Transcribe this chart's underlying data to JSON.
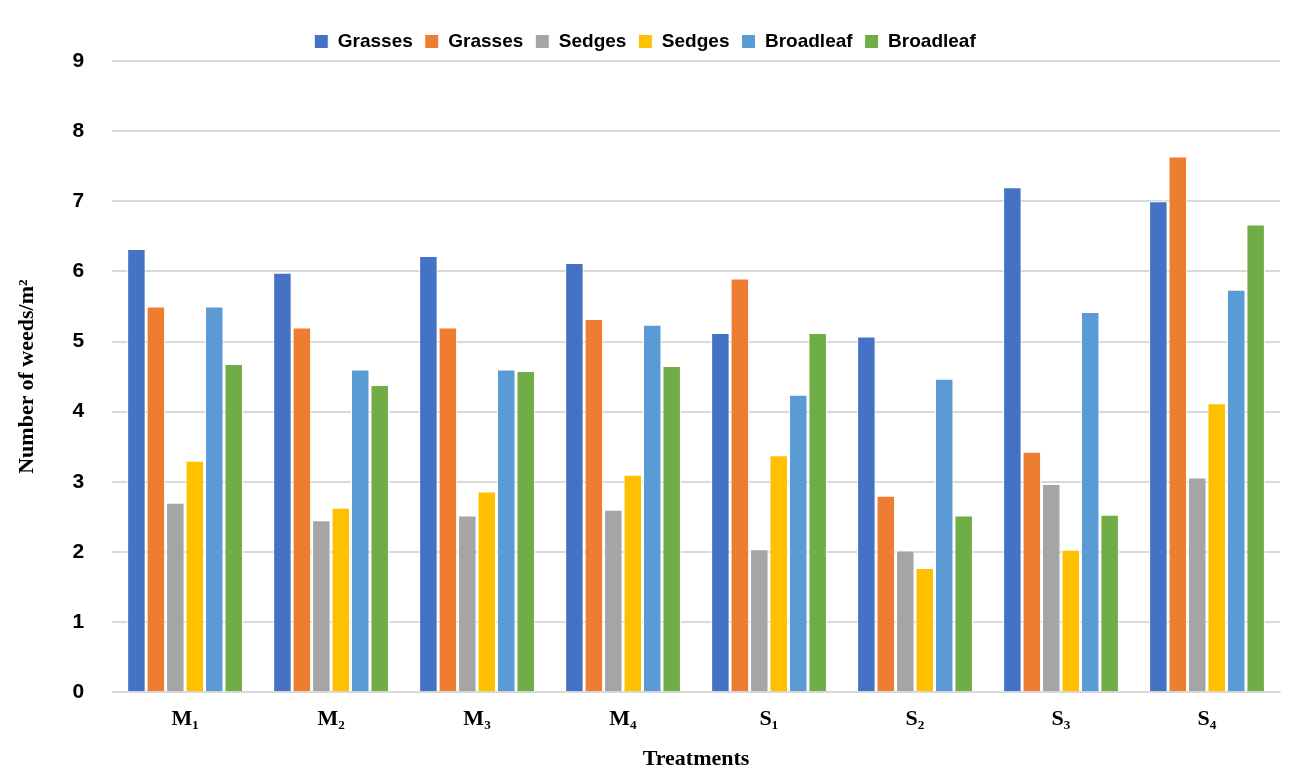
{
  "chart_data": {
    "type": "bar",
    "xlabel": "Treatments",
    "ylabel": "Number of weeds/m²",
    "categories": [
      "M₁",
      "M₂",
      "M₃",
      "M₄",
      "S₁",
      "S₂",
      "S₃",
      "S₄"
    ],
    "series": [
      {
        "name": "Grasses",
        "color": "#4472c4",
        "values": [
          6.32,
          5.98,
          6.22,
          6.12,
          5.12,
          5.07,
          7.2,
          7.0
        ]
      },
      {
        "name": "Grasses",
        "color": "#ed7d31",
        "values": [
          5.5,
          5.2,
          5.2,
          5.32,
          5.9,
          2.8,
          3.43,
          7.64
        ]
      },
      {
        "name": "Sedges",
        "color": "#a5a5a5",
        "values": [
          2.7,
          2.45,
          2.52,
          2.6,
          2.04,
          2.02,
          2.97,
          3.06
        ]
      },
      {
        "name": "Sedges",
        "color": "#ffc000",
        "values": [
          3.3,
          2.63,
          2.86,
          3.1,
          3.38,
          1.77,
          2.03,
          4.12
        ]
      },
      {
        "name": "Broadleaf",
        "color": "#5b9bd5",
        "values": [
          5.5,
          4.6,
          4.6,
          5.24,
          4.24,
          4.47,
          5.42,
          5.74
        ]
      },
      {
        "name": "Broadleaf",
        "color": "#70ad47",
        "values": [
          4.68,
          4.38,
          4.58,
          4.65,
          5.12,
          2.52,
          2.53,
          6.67
        ]
      }
    ],
    "ylim": [
      0,
      9
    ],
    "yticks": [
      0,
      1,
      2,
      3,
      4,
      5,
      6,
      7,
      8,
      9
    ],
    "grid": "y",
    "legend": "top"
  }
}
